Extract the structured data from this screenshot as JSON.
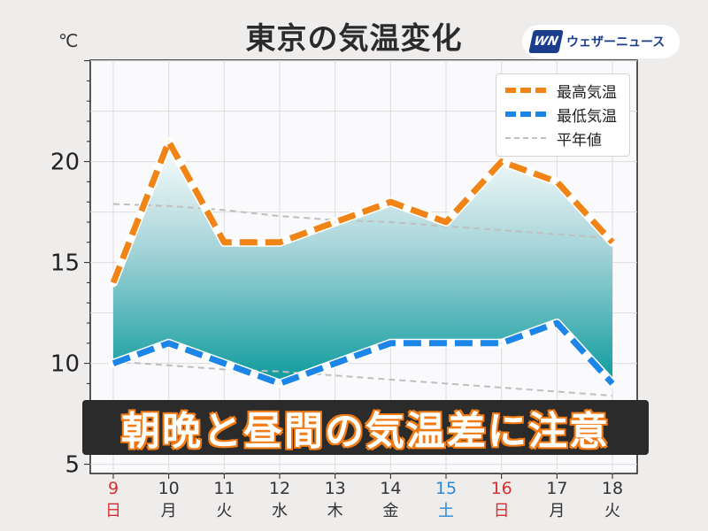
{
  "header": {
    "title": "東京の気温変化",
    "unit": "℃",
    "brand": "ウェザーニュース",
    "brand_logo": "WN"
  },
  "banner": {
    "text": "朝晩と昼間の気温差に注意"
  },
  "legend": {
    "high": "最高気温",
    "low": "最低気温",
    "normal": "平年値"
  },
  "chart_data": {
    "type": "line",
    "days": [
      "9",
      "10",
      "11",
      "12",
      "13",
      "14",
      "15",
      "16",
      "17",
      "18"
    ],
    "weekdays": [
      "日",
      "月",
      "火",
      "水",
      "木",
      "金",
      "土",
      "日",
      "月",
      "火"
    ],
    "day_colors": [
      "#d62f2f",
      "#333333",
      "#333333",
      "#333333",
      "#333333",
      "#333333",
      "#2a88d8",
      "#d62f2f",
      "#333333",
      "#333333"
    ],
    "series": [
      {
        "name": "最高気温",
        "color": "#f08416",
        "values": [
          14,
          21,
          16,
          16,
          17,
          18,
          17,
          20,
          19,
          16
        ]
      },
      {
        "name": "最低気温",
        "color": "#1b86e8",
        "values": [
          10,
          11,
          10,
          9,
          10,
          11,
          11,
          11,
          12,
          9
        ]
      },
      {
        "name": "平年値",
        "color": "#bfbfbf",
        "values": [
          17.9,
          17.8,
          17.6,
          17.3,
          17.1,
          17.0,
          16.8,
          16.6,
          16.4,
          16.2
        ]
      },
      {
        "name": "平年値",
        "color": "#bfbfbf",
        "values": [
          10.1,
          9.9,
          9.7,
          9.6,
          9.4,
          9.2,
          9.0,
          8.8,
          8.6,
          8.4
        ]
      }
    ],
    "yticks": [
      5,
      10,
      15,
      20
    ],
    "ylim": [
      5,
      25
    ],
    "grid": true,
    "legend_position": "top-right"
  }
}
